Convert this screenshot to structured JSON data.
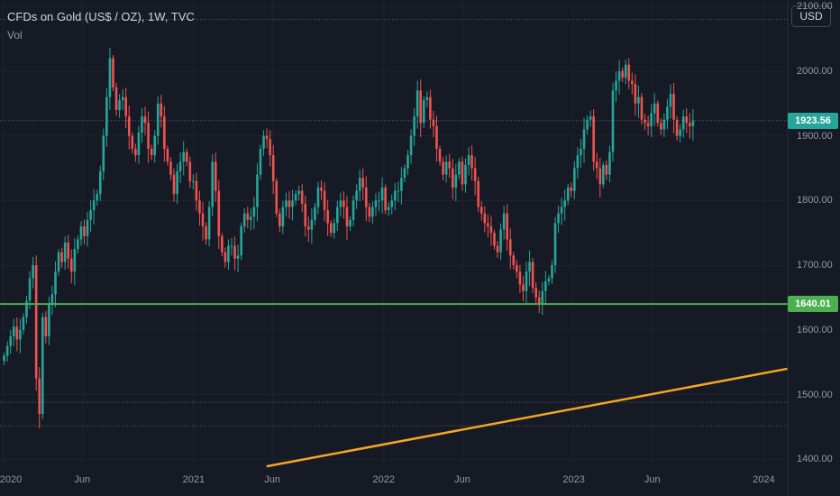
{
  "legend": {
    "title": "CFDs on Gold (US$ / OZ), 1W, TVC",
    "volume_label": "Vol"
  },
  "currency_button": "USD",
  "colors": {
    "background": "#161a25",
    "up": "#26a69a",
    "down": "#ef5350",
    "horizontal_line": "#4caf50",
    "trend_line": "#f5a623",
    "last_price_badge": "#26a69a",
    "level_badge": "#4caf50"
  },
  "badges": {
    "last_price": "1923.56",
    "level": "1640.01"
  },
  "chart_data": {
    "type": "candlestick",
    "symbol": "CFDs on Gold (US$ / OZ)",
    "interval": "1W",
    "source": "TVC",
    "y_axis": {
      "ticks": [
        "2100.00",
        "2000.00",
        "1900.00",
        "1800.00",
        "1700.00",
        "1600.00",
        "1500.00",
        "1400.00"
      ],
      "ylim": [
        1385,
        2110
      ]
    },
    "x_axis": {
      "ticks": [
        "2020",
        "Jun",
        "2021",
        "Jun",
        "2022",
        "Jun",
        "2023",
        "Jun",
        "2024"
      ],
      "tick_dates": [
        "2020-01-01",
        "2020-06-01",
        "2021-01-01",
        "2021-06-01",
        "2022-01-01",
        "2022-06-01",
        "2023-01-01",
        "2023-06-01",
        "2024-01-01"
      ],
      "xlim": [
        "2019-12-26",
        "2024-02-16"
      ]
    },
    "horizontal_line": {
      "value": 1640.01
    },
    "trend_line": {
      "start": [
        "2021-05-21",
        1389
      ],
      "end": [
        "2024-02-16",
        1540
      ]
    },
    "dotted_levels": [
      2080,
      1923.56,
      1488,
      1452
    ],
    "closes": [
      1560,
      1575,
      1590,
      1605,
      1585,
      1600,
      1620,
      1645,
      1680,
      1700,
      1525,
      1470,
      1620,
      1590,
      1640,
      1655,
      1690,
      1720,
      1705,
      1735,
      1710,
      1690,
      1725,
      1740,
      1760,
      1745,
      1770,
      1785,
      1800,
      1810,
      1845,
      1900,
      1960,
      2020,
      1975,
      1940,
      1955,
      1960,
      1930,
      1900,
      1880,
      1870,
      1905,
      1930,
      1920,
      1880,
      1870,
      1900,
      1950,
      1930,
      1880,
      1860,
      1840,
      1810,
      1845,
      1860,
      1875,
      1860,
      1830,
      1830,
      1800,
      1780,
      1760,
      1740,
      1790,
      1860,
      1815,
      1745,
      1720,
      1705,
      1730,
      1730,
      1710,
      1715,
      1760,
      1780,
      1770,
      1775,
      1790,
      1840,
      1880,
      1900,
      1895,
      1870,
      1830,
      1780,
      1760,
      1790,
      1800,
      1790,
      1800,
      1810,
      1815,
      1795,
      1760,
      1755,
      1770,
      1790,
      1820,
      1815,
      1785,
      1765,
      1750,
      1765,
      1790,
      1800,
      1790,
      1760,
      1770,
      1800,
      1815,
      1835,
      1820,
      1790,
      1775,
      1790,
      1800,
      1800,
      1820,
      1785,
      1790,
      1800,
      1815,
      1815,
      1835,
      1850,
      1870,
      1900,
      1930,
      1970,
      1920,
      1955,
      1960,
      1925,
      1915,
      1880,
      1860,
      1840,
      1860,
      1850,
      1820,
      1840,
      1860,
      1825,
      1855,
      1870,
      1850,
      1830,
      1790,
      1780,
      1765,
      1760,
      1750,
      1730,
      1720,
      1755,
      1780,
      1740,
      1715,
      1700,
      1690,
      1670,
      1660,
      1690,
      1705,
      1665,
      1650,
      1640,
      1660,
      1675,
      1680,
      1700,
      1765,
      1780,
      1790,
      1800,
      1820,
      1815,
      1850,
      1870,
      1880,
      1910,
      1925,
      1930,
      1860,
      1850,
      1825,
      1855,
      1840,
      1875,
      1970,
      1985,
      2000,
      1990,
      2010,
      1985,
      1980,
      1950,
      1960,
      1925,
      1920,
      1915,
      1935,
      1950,
      1920,
      1910,
      1925,
      1945,
      1965,
      1925,
      1900,
      1910,
      1930,
      1920,
      1915,
      1923.56
    ]
  }
}
